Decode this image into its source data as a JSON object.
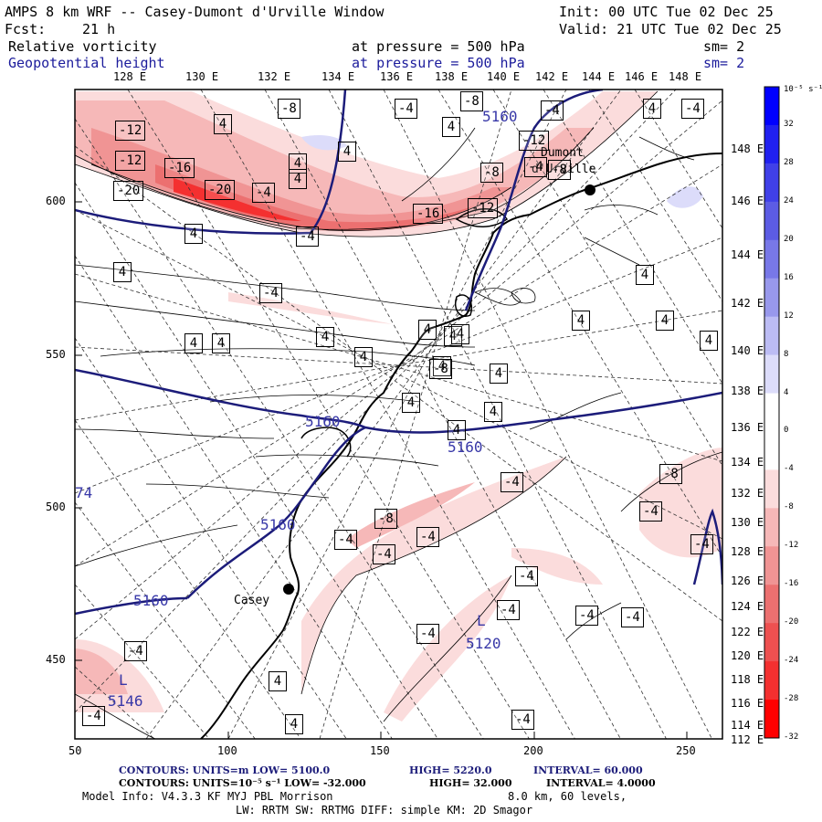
{
  "header": {
    "title": "AMPS 8 km WRF -- Casey-Dumont d'Urville Window",
    "init": "Init: 00 UTC Tue 02 Dec 25",
    "fcst_label": "Fcst:",
    "fcst_hours": "21 h",
    "valid": "Valid: 21 UTC Tue 02 Dec 25",
    "field1_name": "Relative vorticity",
    "field1_level": "at pressure =  500 hPa",
    "field1_sm": "sm= 2",
    "field2_name": "Geopotential height",
    "field2_level": "at pressure =  500 hPa",
    "field2_sm": "sm= 2"
  },
  "top_lon_labels": [
    "128 E",
    "130 E",
    "132 E",
    "134 E",
    "136 E",
    "138 E",
    "140 E",
    "142 E",
    "144 E",
    "146 E",
    "148 E"
  ],
  "right_lat_labels": [
    "148 E",
    "146 E",
    "144 E",
    "142 E",
    "140 E",
    "138 E",
    "136 E",
    "134 E",
    "132 E",
    "130 E",
    "128 E",
    "126 E",
    "124 E",
    "122 E",
    "120 E",
    "118 E",
    "116 E",
    "114 E",
    "112 E"
  ],
  "x_axis_ticks": [
    "50",
    "100",
    "150",
    "200",
    "250"
  ],
  "y_axis_ticks": [
    "600",
    "550",
    "500",
    "450"
  ],
  "colorbar": {
    "unit_label": "10⁻⁵ s⁻¹",
    "labels": [
      "32",
      "28",
      "24",
      "20",
      "16",
      "12",
      "8",
      "4",
      "0",
      "-4",
      "-8",
      "-12",
      "-16",
      "-20",
      "-24",
      "-28",
      "-32"
    ],
    "colors": [
      "#0000ff",
      "#2020f0",
      "#4040e8",
      "#5c5ce4",
      "#7878e8",
      "#9898ec",
      "#bcbcf4",
      "#dcdcfa",
      "#ffffff",
      "#ffffff",
      "#fbdcdc",
      "#f6b8b8",
      "#f09494",
      "#ec7070",
      "#ee5050",
      "#f43030",
      "#ff0000"
    ]
  },
  "places": {
    "casey": "Casey",
    "dumont": "Dumont",
    "durville": "d'Urville"
  },
  "height_labels": [
    "5160",
    "5160",
    "5160",
    "5160",
    "5160",
    "5120",
    "5146",
    "L",
    "L",
    "74"
  ],
  "vort_boxes": [
    "-12",
    "-12",
    "-16",
    "-20",
    "-4",
    "-8",
    "-20",
    "-4",
    "-8",
    "-16",
    "-12",
    "-12",
    "-8",
    "-4",
    "-4",
    "4",
    "4",
    "4",
    "4",
    "4",
    "4",
    "4",
    "4",
    "4",
    "4",
    "4",
    "4",
    "4",
    "4",
    "4",
    "4",
    "4",
    "4",
    "4",
    "4",
    "4",
    "4",
    "4",
    "-4",
    "-4",
    "-4",
    "-8",
    "-8",
    "-4",
    "-4",
    "-4",
    "-4",
    "-4",
    "-4",
    "-4",
    "-4",
    "-4",
    "-4",
    "-8",
    "-4",
    "-4",
    "-4",
    "4",
    "4",
    "4",
    "-8",
    "-4"
  ],
  "footer": {
    "line1a": "CONTOURS:  UNITS=m  LOW=  5100.0",
    "line1b": "HIGH=  5220.0",
    "line1c": "INTERVAL=   60.000",
    "line2a": "CONTOURS:  UNITS=10⁻⁵ s⁻¹   LOW= -32.000",
    "line2b": "HIGH=  32.000",
    "line2c": "INTERVAL=   4.0000",
    "line3a": "Model Info: V4.3.3    KF      MYJ PBL  Morrison",
    "line3b": "8.0 km,  60 levels,",
    "line4": "LW: RRTM SW: RRTMG   DIFF: simple KM: 2D Smagor"
  }
}
